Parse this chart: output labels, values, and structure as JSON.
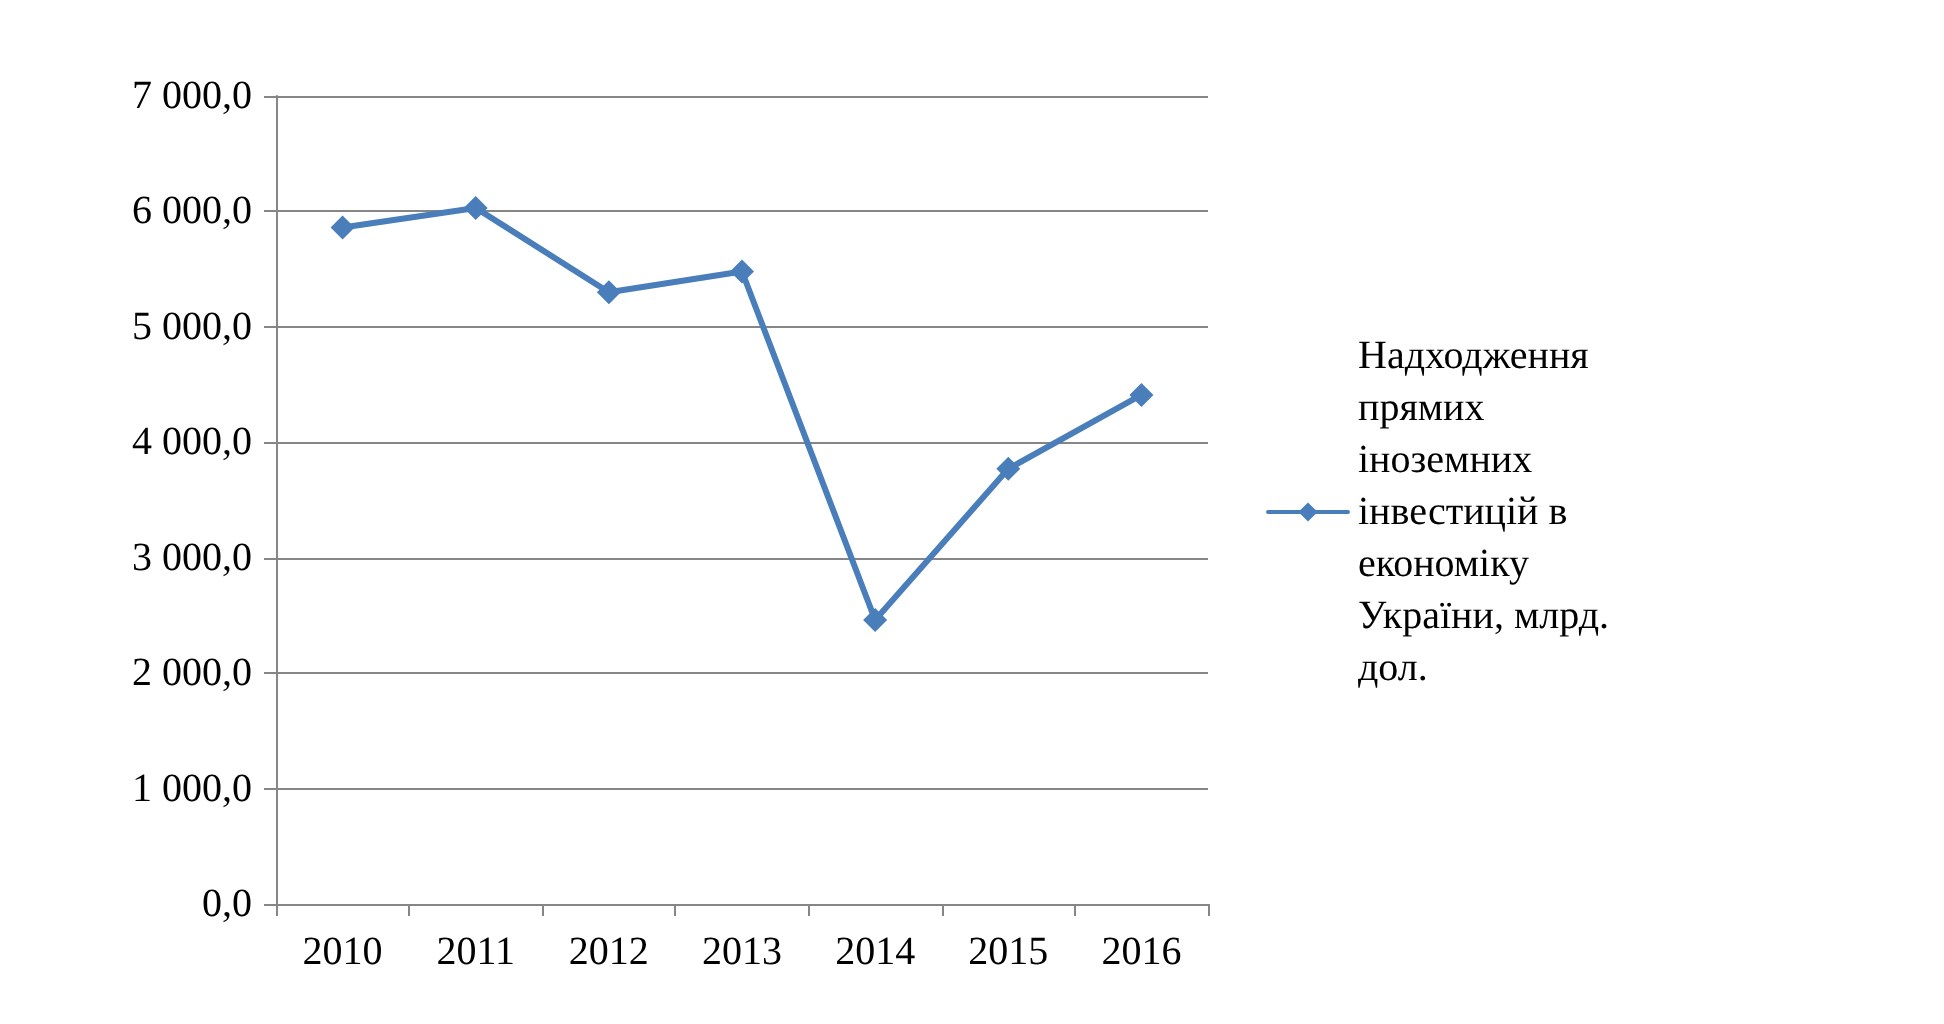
{
  "chart_data": {
    "type": "line",
    "categories": [
      "2010",
      "2011",
      "2012",
      "2013",
      "2014",
      "2015",
      "2016"
    ],
    "series": [
      {
        "name": "Надходження прямих іноземних інвестицій в економіку України, млрд. дол.",
        "color": "#4a7ebb",
        "values": [
          5860,
          6030,
          5300,
          5480,
          2460,
          3770,
          4410
        ]
      }
    ],
    "ylim": [
      0,
      7000
    ],
    "yticks": [
      {
        "value": 0,
        "label": "0,0"
      },
      {
        "value": 1000,
        "label": "1 000,0"
      },
      {
        "value": 2000,
        "label": "2 000,0"
      },
      {
        "value": 3000,
        "label": "3 000,0"
      },
      {
        "value": 4000,
        "label": "4 000,0"
      },
      {
        "value": 5000,
        "label": "5 000,0"
      },
      {
        "value": 6000,
        "label": "6 000,0"
      },
      {
        "value": 7000,
        "label": "7 000,0"
      }
    ],
    "grid": "y",
    "legend": "right",
    "marker": "diamond",
    "line_style": "solid"
  }
}
